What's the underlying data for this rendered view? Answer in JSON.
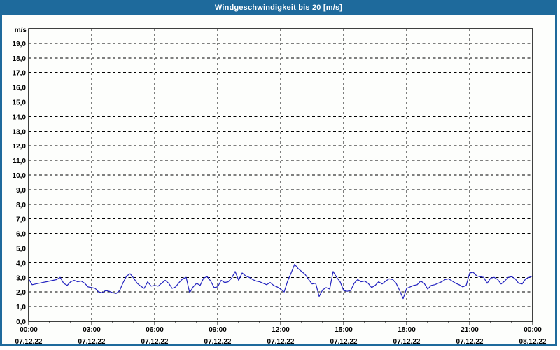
{
  "window": {
    "title": "Windgeschwindigkeit bis 20 [m/s]"
  },
  "colors": {
    "titlebar_bg": "#1e6a9c",
    "frame": "#1e6a9c",
    "title_text": "#ffffff",
    "plot_bg": "#fdfefc",
    "axis": "#000000",
    "grid": "#000000",
    "tick_text": "#000000",
    "line": "#2222bf"
  },
  "chart_data": {
    "type": "line",
    "title": "Windgeschwindigkeit bis 20 [m/s]",
    "unit_label": "m/s",
    "xlabel": "",
    "ylabel": "m/s",
    "ylim": [
      0,
      20
    ],
    "y_tick_step": 1,
    "y_tick_labels": [
      "0,0",
      "1,0",
      "2,0",
      "3,0",
      "4,0",
      "5,0",
      "6,0",
      "7,0",
      "8,0",
      "9,0",
      "10,0",
      "11,0",
      "12,0",
      "13,0",
      "14,0",
      "15,0",
      "16,0",
      "17,0",
      "18,0",
      "19,0"
    ],
    "grid": "dashed",
    "legend_position": "none",
    "x_span_minutes": 1440,
    "x_major_tick_minutes": 180,
    "x_minor_tick_minutes": 60,
    "x_tick_labels": [
      {
        "time": "00:00",
        "date": "07.12.22"
      },
      {
        "time": "03:00",
        "date": "07.12.22"
      },
      {
        "time": "06:00",
        "date": "07.12.22"
      },
      {
        "time": "09:00",
        "date": "07.12.22"
      },
      {
        "time": "12:00",
        "date": "07.12.22"
      },
      {
        "time": "15:00",
        "date": "07.12.22"
      },
      {
        "time": "18:00",
        "date": "07.12.22"
      },
      {
        "time": "21:00",
        "date": "07.12.22"
      },
      {
        "time": "00:00",
        "date": "08.12.22"
      }
    ],
    "series": [
      {
        "name": "Windgeschwindigkeit",
        "unit": "m/s",
        "sample_interval_minutes": 10,
        "values": [
          2.9,
          2.5,
          2.55,
          2.6,
          2.65,
          2.7,
          2.75,
          2.8,
          2.85,
          3.0,
          2.6,
          2.45,
          2.7,
          2.8,
          2.7,
          2.75,
          2.6,
          2.35,
          2.3,
          2.25,
          2.0,
          1.95,
          2.1,
          2.05,
          1.95,
          1.9,
          2.1,
          2.65,
          3.1,
          3.25,
          2.95,
          2.6,
          2.4,
          2.25,
          2.7,
          2.4,
          2.45,
          2.4,
          2.6,
          2.8,
          2.6,
          2.25,
          2.35,
          2.65,
          2.9,
          3.0,
          1.95,
          2.35,
          2.6,
          2.45,
          2.95,
          3.05,
          2.75,
          2.3,
          2.35,
          2.8,
          2.65,
          2.7,
          2.95,
          3.4,
          2.8,
          3.3,
          3.1,
          3.0,
          2.85,
          2.75,
          2.7,
          2.6,
          2.5,
          2.65,
          2.45,
          2.35,
          2.2,
          2.0,
          2.75,
          3.3,
          3.9,
          3.6,
          3.4,
          3.2,
          2.85,
          2.55,
          2.6,
          1.7,
          2.15,
          2.3,
          2.2,
          3.4,
          3.0,
          2.7,
          2.1,
          2.05,
          2.1,
          2.6,
          2.85,
          2.7,
          2.75,
          2.6,
          2.3,
          2.45,
          2.7,
          2.55,
          2.75,
          2.9,
          2.85,
          2.6,
          2.1,
          1.55,
          2.25,
          2.35,
          2.45,
          2.5,
          2.75,
          2.6,
          2.2,
          2.45,
          2.5,
          2.6,
          2.7,
          2.85,
          2.9,
          2.75,
          2.6,
          2.5,
          2.35,
          2.45,
          3.3,
          3.35,
          3.1,
          3.05,
          3.0,
          2.6,
          2.95,
          3.0,
          2.85,
          2.55,
          2.75,
          3.0,
          3.05,
          2.9,
          2.6,
          2.55,
          2.9,
          3.0,
          3.1
        ]
      }
    ]
  }
}
